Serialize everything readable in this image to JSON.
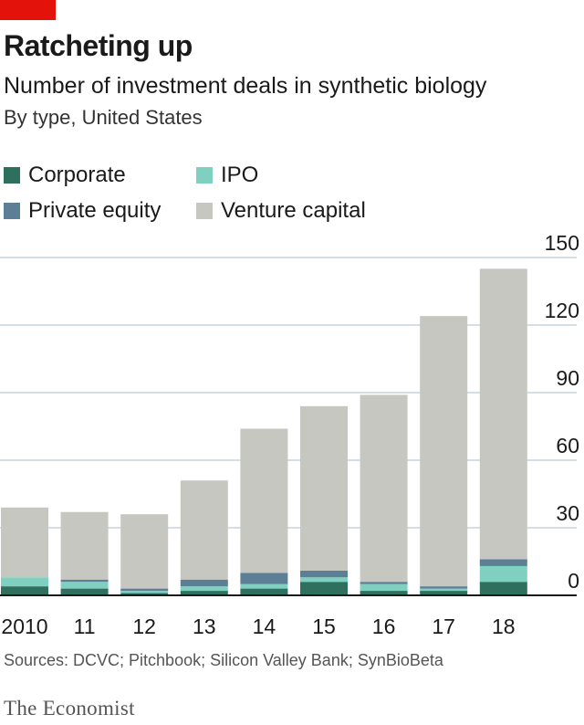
{
  "header": {
    "title": "Ratcheting up",
    "subtitle": "Number of investment deals in synthetic biology",
    "subsubtitle": "By type, United States"
  },
  "legend": {
    "items": [
      {
        "label": "Corporate",
        "color": "#2e6f5e"
      },
      {
        "label": "IPO",
        "color": "#7fd0c0"
      },
      {
        "label": "Private equity",
        "color": "#5c7f95"
      },
      {
        "label": "Venture capital",
        "color": "#c6c7c1"
      }
    ]
  },
  "chart_data": {
    "type": "bar",
    "stacked": true,
    "categories": [
      "2010",
      "11",
      "12",
      "13",
      "14",
      "15",
      "16",
      "17",
      "18"
    ],
    "series": [
      {
        "name": "Corporate",
        "color": "#2e6f5e",
        "values": [
          4,
          3,
          1,
          2,
          3,
          6,
          2,
          2,
          6
        ]
      },
      {
        "name": "IPO",
        "color": "#7fd0c0",
        "values": [
          4,
          3,
          1,
          2,
          2,
          2,
          3,
          1,
          7
        ]
      },
      {
        "name": "Private equity",
        "color": "#5c7f95",
        "values": [
          0,
          1,
          1,
          3,
          5,
          3,
          1,
          1,
          3
        ]
      },
      {
        "name": "Venture capital",
        "color": "#c6c7c1",
        "values": [
          31,
          30,
          33,
          44,
          64,
          73,
          83,
          120,
          129
        ]
      }
    ],
    "yticks": [
      0,
      30,
      60,
      90,
      120,
      150
    ],
    "ylim": [
      0,
      150
    ],
    "grid": true,
    "ylabel_position": "right"
  },
  "footer": {
    "sources": "Sources: DCVC; Pitchbook; Silicon Valley Bank; SynBioBeta",
    "logo": "The Economist"
  }
}
